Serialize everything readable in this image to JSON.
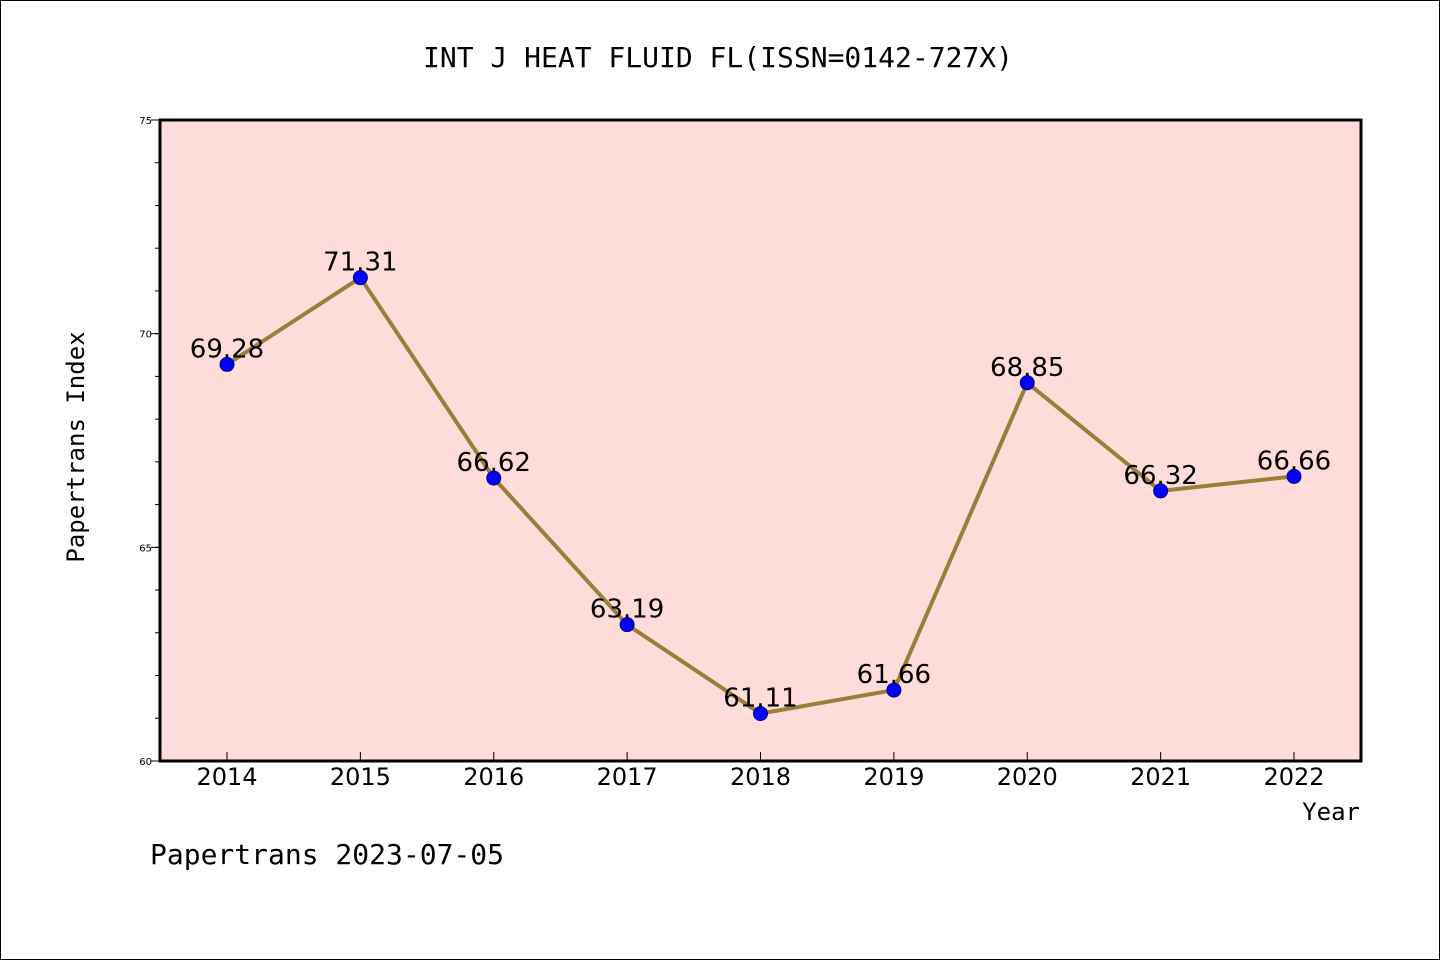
{
  "chart_data": {
    "type": "line",
    "title": "INT J HEAT FLUID FL(ISSN=0142-727X)",
    "xlabel": "Year",
    "ylabel": "Papertrans Index",
    "x": [
      "2014",
      "2015",
      "2016",
      "2017",
      "2018",
      "2019",
      "2020",
      "2021",
      "2022"
    ],
    "values": [
      69.28,
      71.31,
      66.62,
      63.19,
      61.11,
      61.66,
      68.85,
      66.32,
      66.66
    ],
    "data_labels": [
      "69.28",
      "71.31",
      "66.62",
      "63.19",
      "61.11",
      "61.66",
      "68.85",
      "66.32",
      "66.66"
    ],
    "ylim": [
      60,
      75
    ],
    "yticks": [
      "60",
      "65",
      "70",
      "75"
    ],
    "y_minor_step": 1,
    "grid": false,
    "colors": {
      "plot_background": "#ffdcd9",
      "line": "#9a7f3a",
      "marker": "#0000ff",
      "marker_edge": "#00008b"
    }
  },
  "footer": {
    "text": "Papertrans 2023-07-05"
  }
}
